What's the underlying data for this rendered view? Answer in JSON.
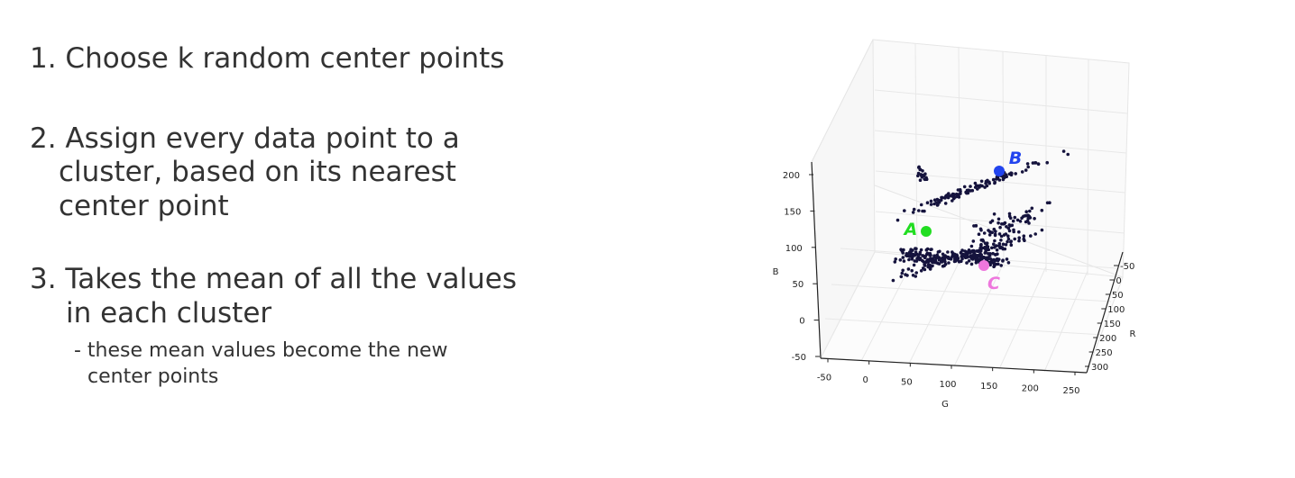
{
  "steps": [
    {
      "lines": [
        "1. Choose k random center points"
      ]
    },
    {
      "lines": [
        "2. Assign every data point to a",
        "cluster, based on its nearest",
        "center point"
      ]
    },
    {
      "lines": [
        "3. Takes the mean of all the values",
        "in each cluster"
      ],
      "sub": [
        "- these mean values become the new",
        "center points"
      ]
    }
  ],
  "chart_data": {
    "type": "scatter",
    "projection": "3d",
    "title": "",
    "axes": {
      "x": {
        "label": "G",
        "ticks": [
          "-50",
          "0",
          "50",
          "100",
          "150",
          "200",
          "250"
        ]
      },
      "y": {
        "label": "R",
        "ticks": [
          "-50",
          "0",
          "50",
          "100",
          "150",
          "200",
          "250",
          "300"
        ]
      },
      "z": {
        "label": "B",
        "ticks": [
          "-50",
          "0",
          "50",
          "100",
          "150",
          "200"
        ]
      }
    },
    "grid": true,
    "series": [
      {
        "name": "",
        "color": "#15133d",
        "values": "pixel data points (dark navy)"
      }
    ],
    "centers": [
      {
        "label": "A",
        "color": "#22dd22"
      },
      {
        "label": "B",
        "color": "#2244ee"
      },
      {
        "label": "C",
        "color": "#ee77dd"
      }
    ]
  }
}
